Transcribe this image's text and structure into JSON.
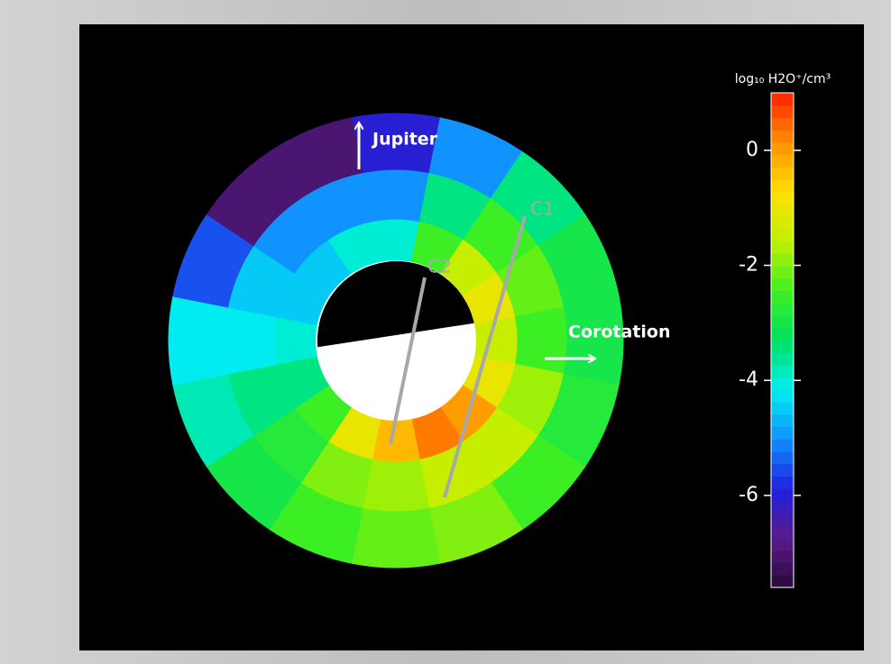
{
  "chart_data": {
    "type": "polar-map",
    "colorbar_label": "log₁₀ H2O⁺/cm³",
    "annotations": [
      "Jupiter",
      "Corotation",
      "C1",
      "C2"
    ],
    "clim": [
      -7.6,
      1.0
    ],
    "cticks": [
      0,
      -2,
      -4,
      -6
    ],
    "colormap": [
      "#2a0a3a",
      "#5a1a8a",
      "#2020e0",
      "#1090ff",
      "#00f0f0",
      "#00e060",
      "#40f020",
      "#c0f000",
      "#ffe000",
      "#ff9000",
      "#ff2000"
    ],
    "field": {
      "rings": [
        [
          -4.0,
          -2.5,
          -1.5,
          -1.0,
          -1.5,
          -1.0,
          0.0,
          0.3,
          -0.3,
          -1.0,
          -2.5,
          -3.5,
          -4.0,
          -4.5,
          -4.5,
          -4.0
        ],
        [
          -5.0,
          -3.5,
          -2.5,
          -2.2,
          -2.5,
          -1.8,
          -1.5,
          -1.5,
          -1.8,
          -2.0,
          -2.8,
          -3.5,
          -4.2,
          -4.5,
          -5.0,
          -5.0
        ],
        [
          -6.0,
          -5.0,
          -3.5,
          -3.0,
          -3.0,
          -2.8,
          -2.5,
          -2.0,
          -2.2,
          -2.5,
          -3.0,
          -3.8,
          -4.2,
          -5.5,
          -7.0,
          -7.0
        ]
      ]
    }
  }
}
